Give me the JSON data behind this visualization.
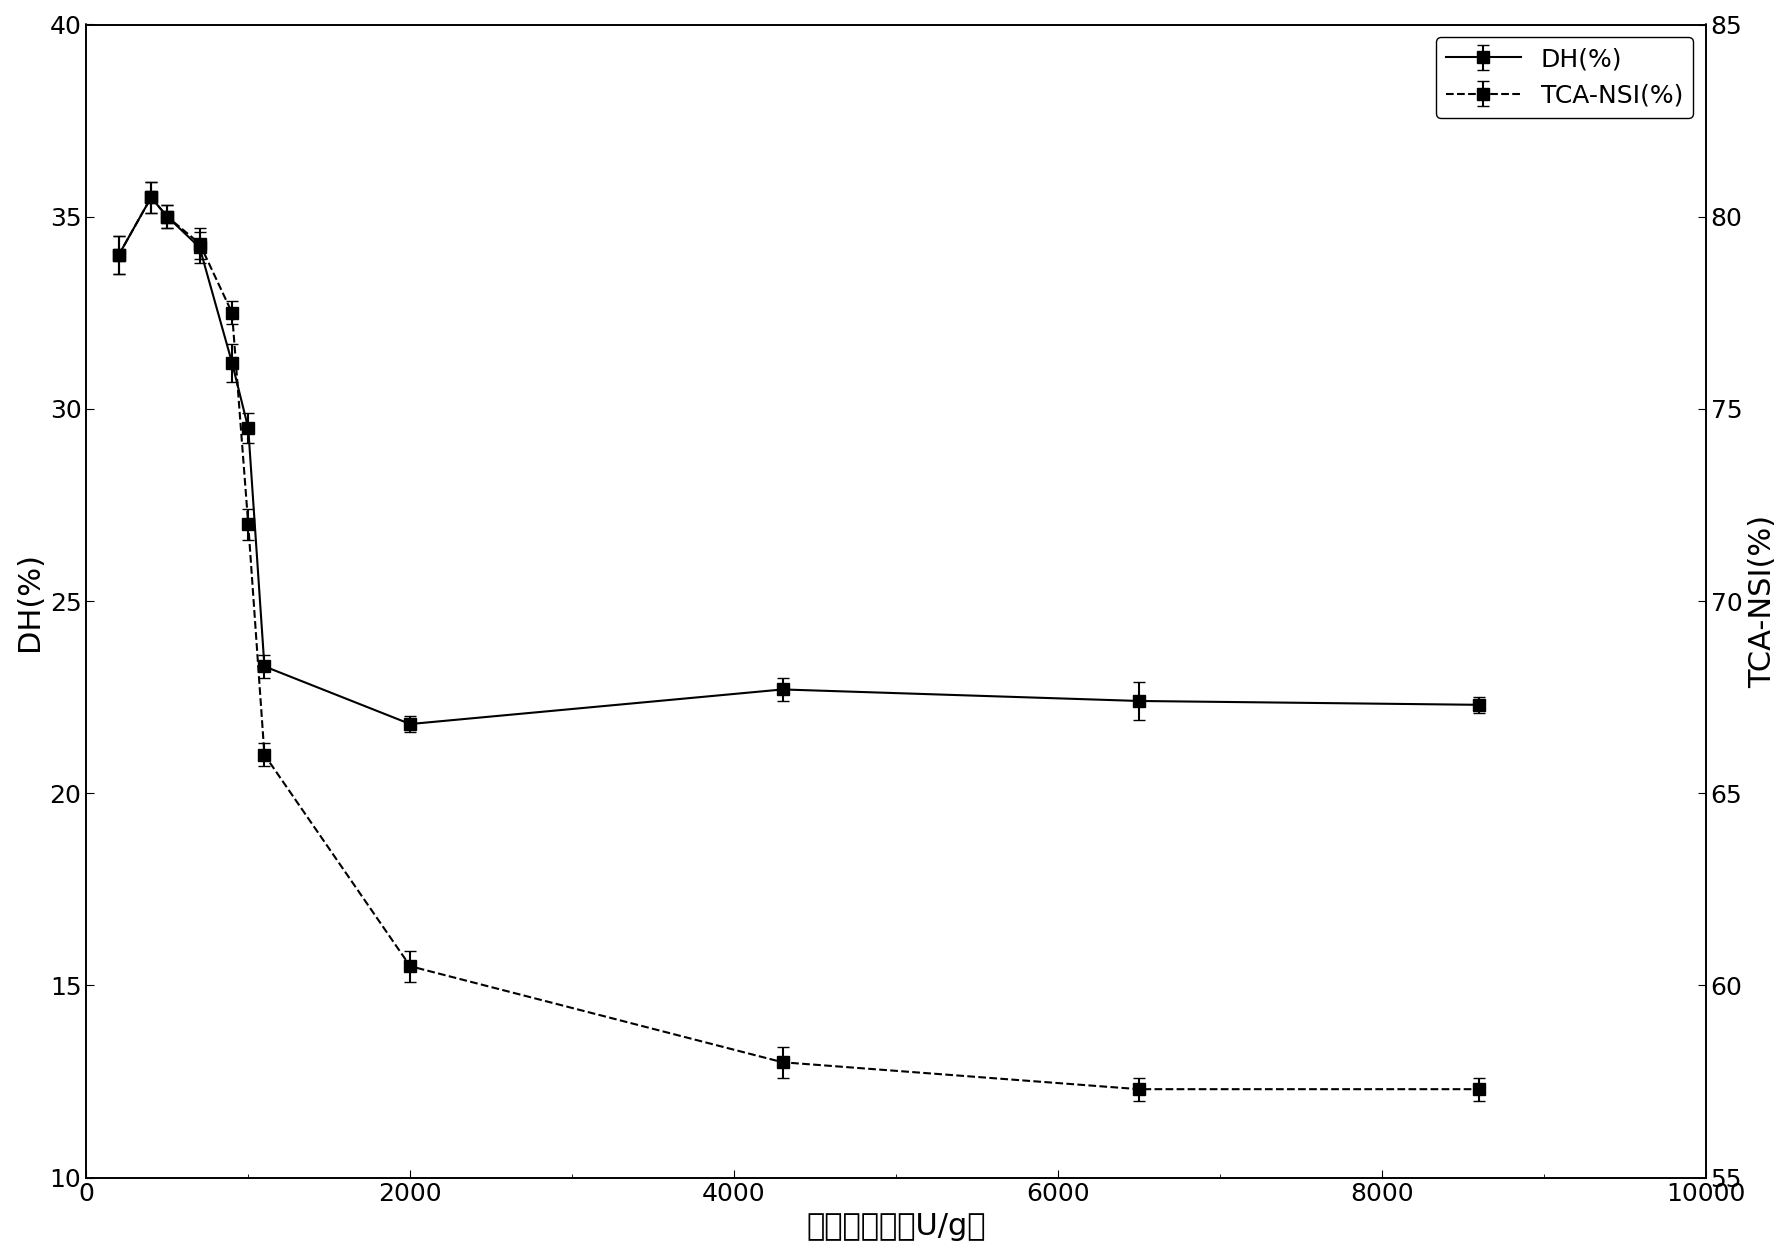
{
  "title": "",
  "xlabel": "复配酶用量（U/g）",
  "ylabel_left": "DH(%)",
  "ylabel_right": "TCA-NSI(%)",
  "xlim": [
    0,
    10000
  ],
  "ylim_left": [
    10,
    40
  ],
  "ylim_right": [
    55,
    85
  ],
  "xticks": [
    0,
    2000,
    4000,
    6000,
    8000,
    10000
  ],
  "yticks_left": [
    10,
    15,
    20,
    25,
    30,
    35,
    40
  ],
  "yticks_right": [
    55,
    60,
    65,
    70,
    75,
    80,
    85
  ],
  "DH_x": [
    200,
    400,
    500,
    700,
    900,
    1000,
    1100,
    2000,
    4300,
    6500,
    8600
  ],
  "DH_y": [
    34.0,
    35.5,
    35.0,
    34.2,
    31.2,
    29.5,
    23.3,
    21.8,
    22.7,
    22.4,
    22.3
  ],
  "DH_yerr": [
    0.5,
    0.4,
    0.3,
    0.4,
    0.5,
    0.4,
    0.3,
    0.2,
    0.3,
    0.5,
    0.2
  ],
  "TCA_x": [
    200,
    400,
    500,
    700,
    900,
    1000,
    1100,
    2000,
    4300,
    6500,
    8600
  ],
  "TCA_y": [
    79.0,
    80.5,
    80.0,
    79.3,
    77.5,
    72.0,
    66.0,
    60.5,
    58.0,
    57.3,
    57.3
  ],
  "TCA_yerr": [
    0.5,
    0.4,
    0.3,
    0.4,
    0.3,
    0.4,
    0.3,
    0.4,
    0.4,
    0.3,
    0.3
  ],
  "legend_DH": "DH(%)",
  "legend_TCA": "TCA-NSI(%)",
  "marker": "s",
  "markersize": 9,
  "linewidth": 1.5,
  "color": "black",
  "fontsize_label": 22,
  "fontsize_tick": 18,
  "fontsize_legend": 18,
  "capsize": 4,
  "elinewidth": 1.5,
  "background": "#ffffff"
}
